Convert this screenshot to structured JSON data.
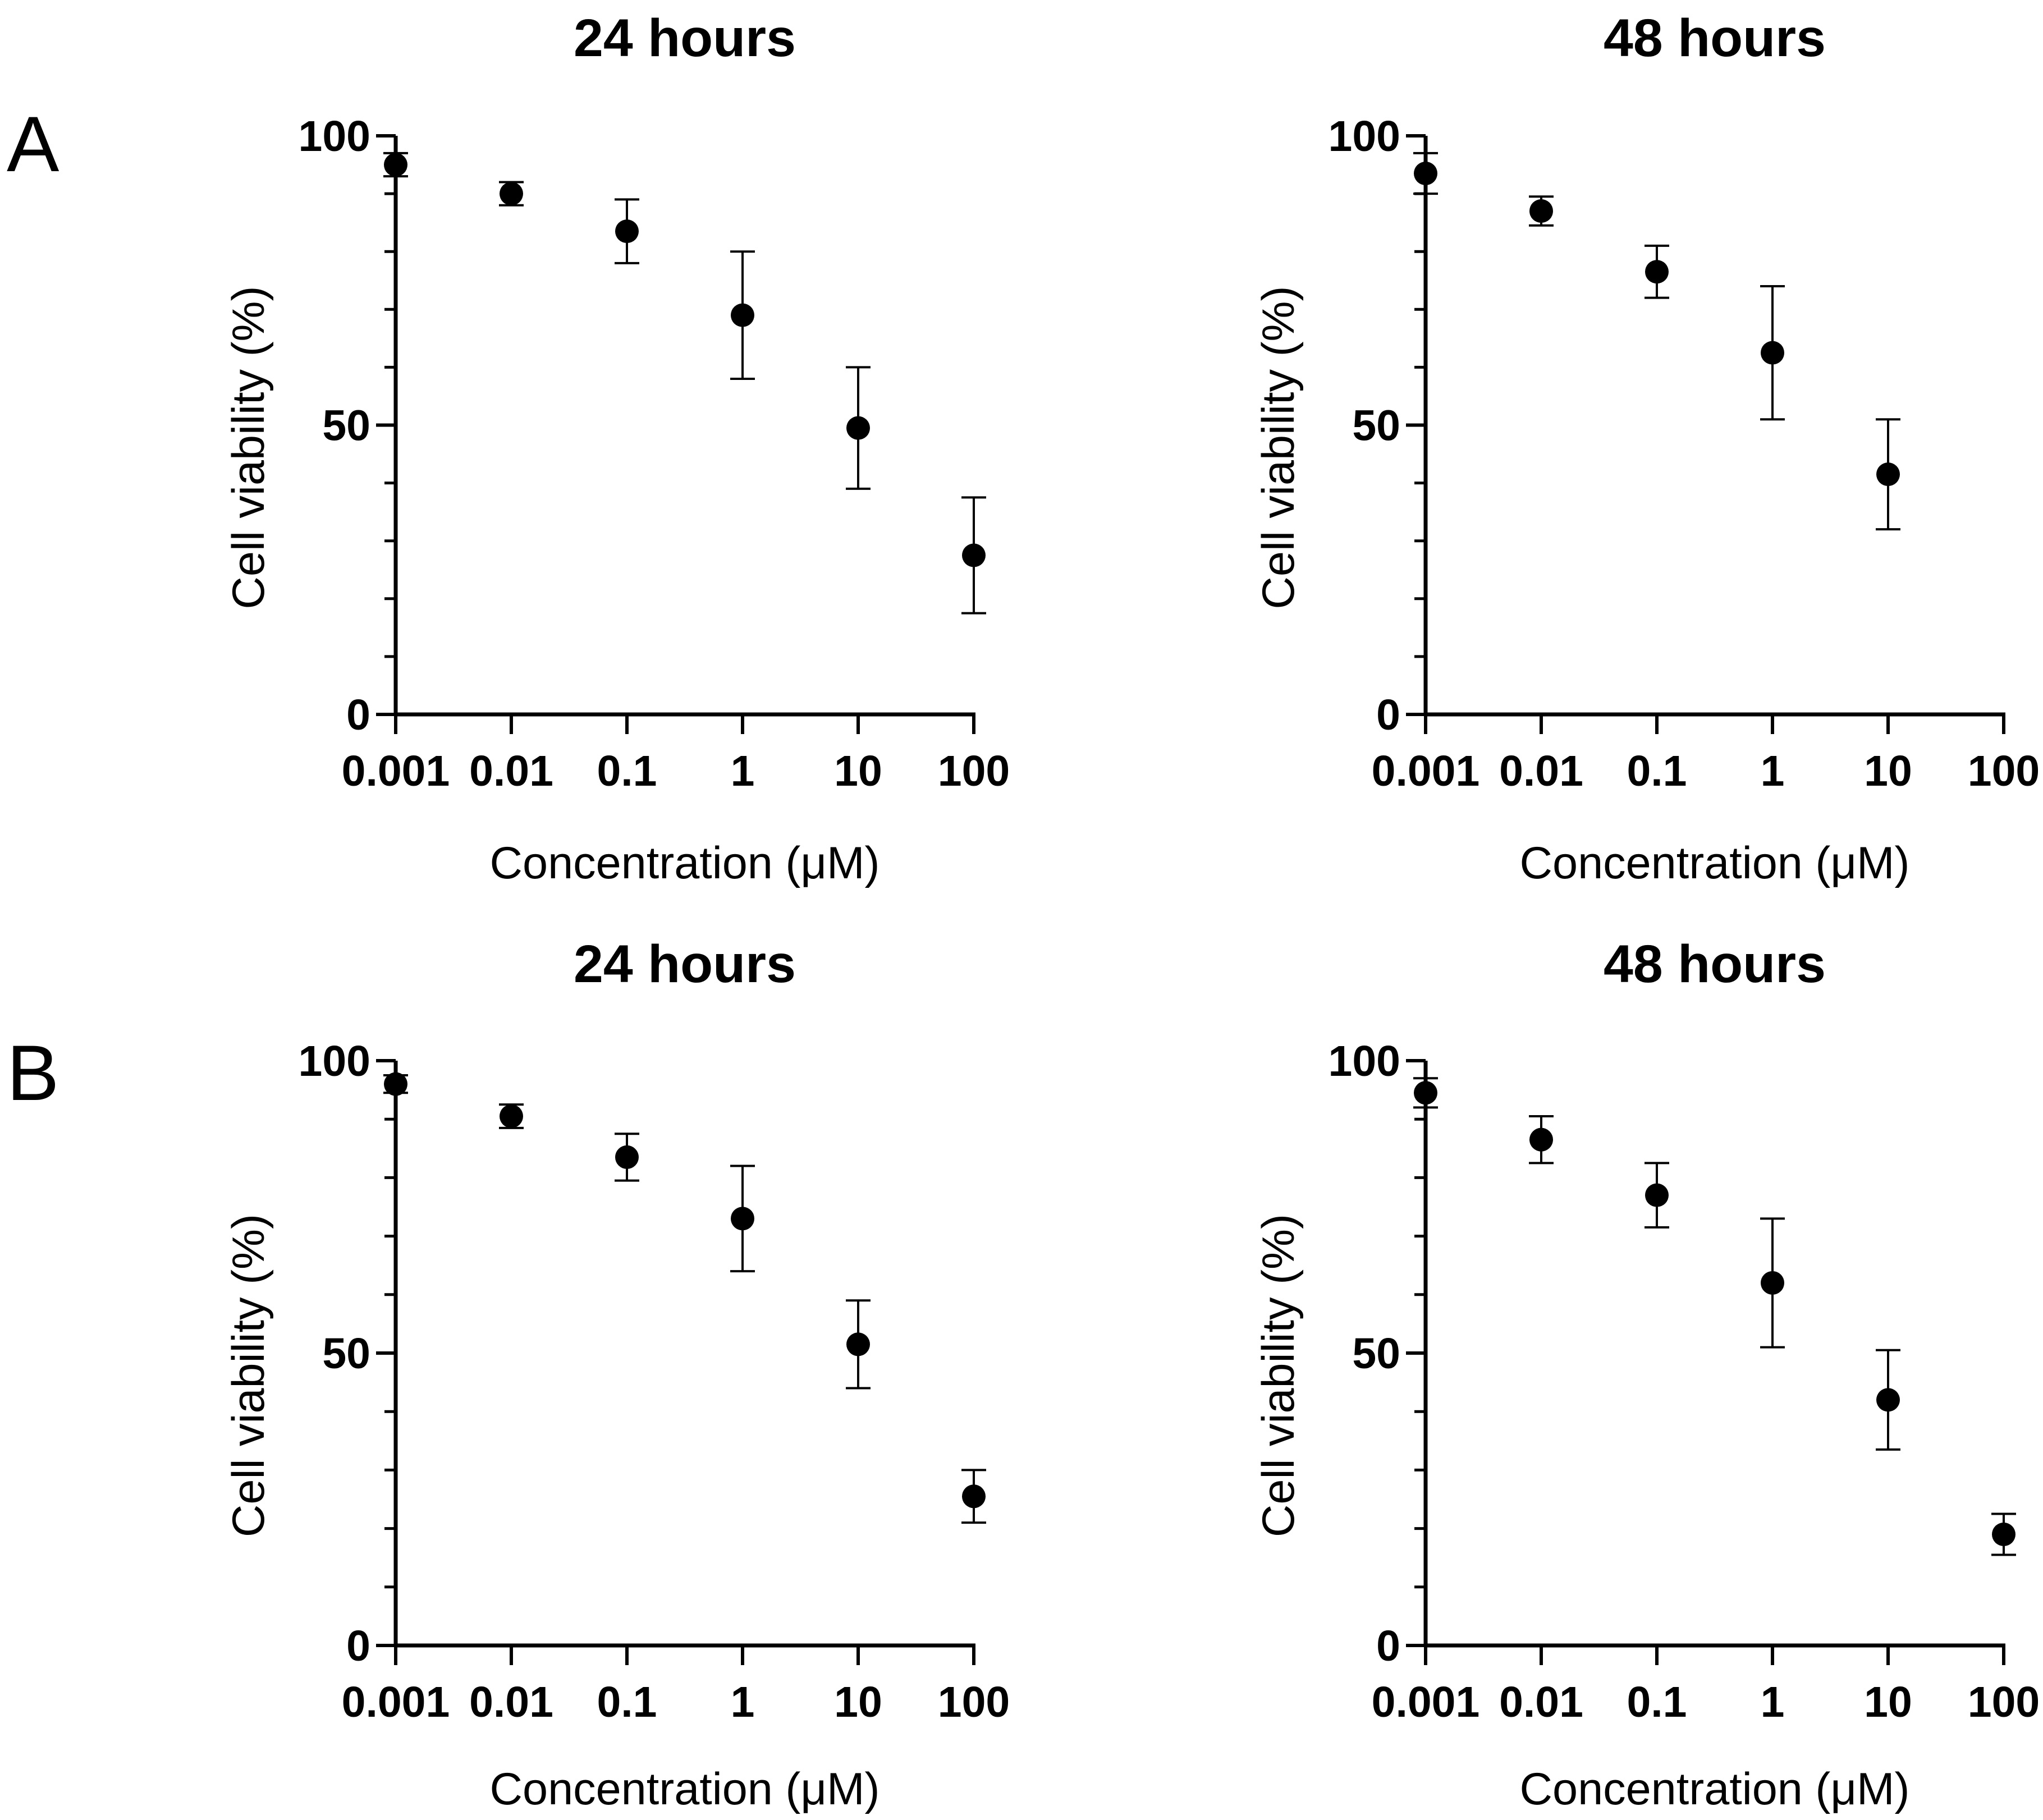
{
  "colors": {
    "ink": "#000000",
    "background": "#ffffff"
  },
  "panel_labels": [
    "A",
    "B"
  ],
  "chart_data": [
    {
      "panel": "A",
      "type": "scatter",
      "title": "24 hours",
      "xlabel": "Concentration (μM)",
      "ylabel": "Cell viability (%)",
      "xscale": "log",
      "x_tick_labels": [
        "0.001",
        "0.01",
        "0.1",
        "1",
        "10",
        "100"
      ],
      "y_tick_labels": [
        "0",
        "50",
        "100"
      ],
      "x": [
        0.001,
        0.01,
        0.1,
        1,
        10,
        100
      ],
      "values": [
        95,
        90,
        83.5,
        69,
        49.5,
        27.5
      ],
      "error": [
        2,
        2,
        5.5,
        11,
        10.5,
        10
      ],
      "ylim": [
        0,
        100
      ],
      "grid": false
    },
    {
      "panel": "A",
      "type": "scatter",
      "title": "48 hours",
      "xlabel": "Concentration (μM)",
      "ylabel": "Cell viability (%)",
      "xscale": "log",
      "x_tick_labels": [
        "0.001",
        "0.01",
        "0.1",
        "1",
        "10",
        "100"
      ],
      "y_tick_labels": [
        "0",
        "50",
        "100"
      ],
      "x": [
        0.001,
        0.01,
        0.1,
        1,
        10
      ],
      "values": [
        93.5,
        87,
        76.5,
        62.5,
        41.5
      ],
      "error": [
        3.5,
        2.5,
        4.5,
        11.5,
        9.5
      ],
      "ylim": [
        0,
        100
      ],
      "grid": false
    },
    {
      "panel": "B",
      "type": "scatter",
      "title": "24 hours",
      "xlabel": "Concentration (μM)",
      "ylabel": "Cell viability (%)",
      "xscale": "log",
      "x_tick_labels": [
        "0.001",
        "0.01",
        "0.1",
        "1",
        "10",
        "100"
      ],
      "y_tick_labels": [
        "0",
        "50",
        "100"
      ],
      "x": [
        0.001,
        0.01,
        0.1,
        1,
        10,
        100
      ],
      "values": [
        96,
        90.5,
        83.5,
        73,
        51.5,
        25.5
      ],
      "error": [
        1.5,
        2,
        4,
        9,
        7.5,
        4.5
      ],
      "ylim": [
        0,
        100
      ],
      "grid": false
    },
    {
      "panel": "B",
      "type": "scatter",
      "title": "48 hours",
      "xlabel": "Concentration (μM)",
      "ylabel": "Cell viability (%)",
      "xscale": "log",
      "x_tick_labels": [
        "0.001",
        "0.01",
        "0.1",
        "1",
        "10",
        "100"
      ],
      "y_tick_labels": [
        "0",
        "50",
        "100"
      ],
      "x": [
        0.001,
        0.01,
        0.1,
        1,
        10,
        100
      ],
      "values": [
        94.5,
        86.5,
        77,
        62,
        42,
        19
      ],
      "error": [
        2.5,
        4,
        5.5,
        11,
        8.5,
        3.5
      ],
      "ylim": [
        0,
        100
      ],
      "grid": false
    }
  ]
}
